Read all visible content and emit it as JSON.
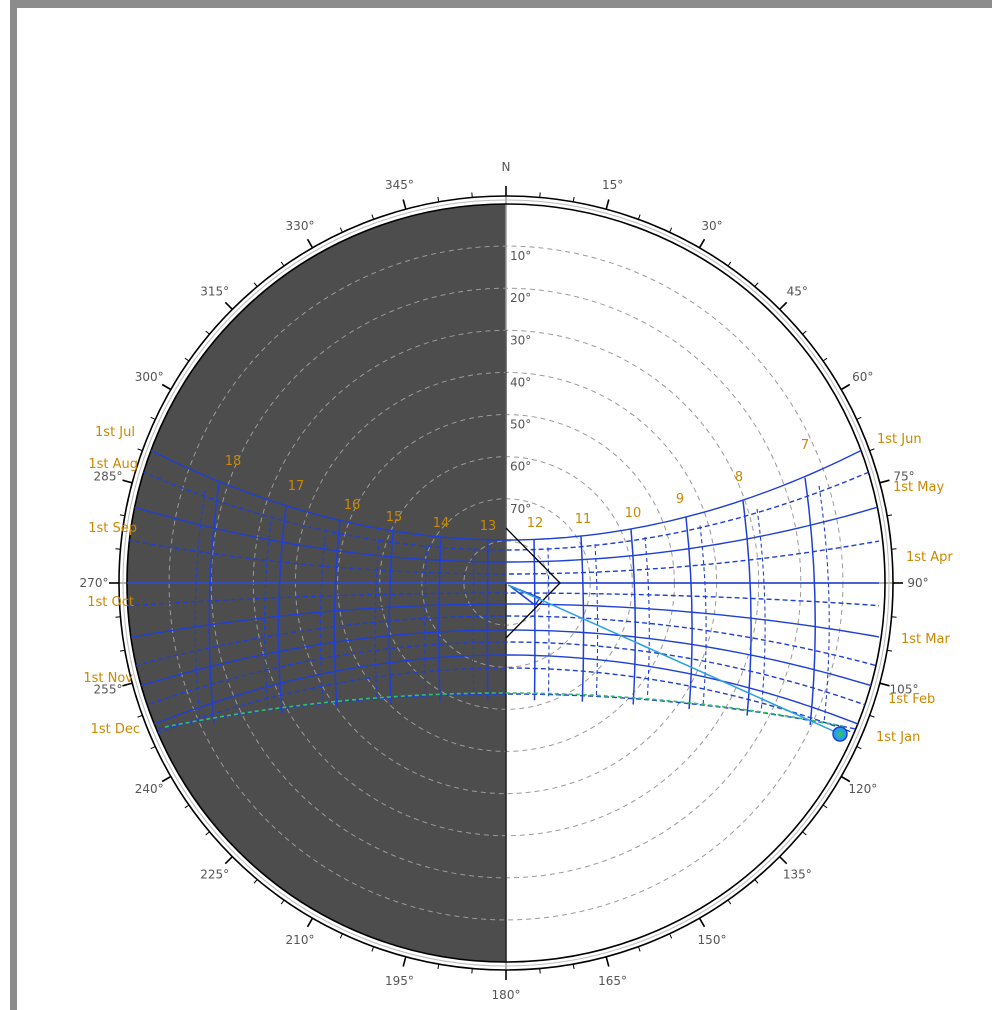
{
  "north_label": "N",
  "azimuth_labels": [
    {
      "deg": 15,
      "text": "15°"
    },
    {
      "deg": 30,
      "text": "30°"
    },
    {
      "deg": 45,
      "text": "45°"
    },
    {
      "deg": 60,
      "text": "60°"
    },
    {
      "deg": 75,
      "text": "75°"
    },
    {
      "deg": 90,
      "text": "90°"
    },
    {
      "deg": 105,
      "text": "105°"
    },
    {
      "deg": 120,
      "text": "120°"
    },
    {
      "deg": 135,
      "text": "135°"
    },
    {
      "deg": 150,
      "text": "150°"
    },
    {
      "deg": 165,
      "text": "165°"
    },
    {
      "deg": 180,
      "text": "180°"
    },
    {
      "deg": 195,
      "text": "195°"
    },
    {
      "deg": 210,
      "text": "210°"
    },
    {
      "deg": 225,
      "text": "225°"
    },
    {
      "deg": 240,
      "text": "240°"
    },
    {
      "deg": 255,
      "text": "255°"
    },
    {
      "deg": 270,
      "text": "270°"
    },
    {
      "deg": 285,
      "text": "285°"
    },
    {
      "deg": 300,
      "text": "300°"
    },
    {
      "deg": 315,
      "text": "315°"
    },
    {
      "deg": 330,
      "text": "330°"
    },
    {
      "deg": 345,
      "text": "345°"
    }
  ],
  "altitude_labels": [
    {
      "alt": 10,
      "text": "10°"
    },
    {
      "alt": 20,
      "text": "20°"
    },
    {
      "alt": 30,
      "text": "30°"
    },
    {
      "alt": 40,
      "text": "40°"
    },
    {
      "alt": 50,
      "text": "50°"
    },
    {
      "alt": 60,
      "text": "60°"
    },
    {
      "alt": 70,
      "text": "70°"
    }
  ],
  "hour_labels": [
    "7",
    "8",
    "9",
    "10",
    "11",
    "12",
    "13",
    "14",
    "15",
    "16",
    "17",
    "18"
  ],
  "month_labels_right": [
    "1st Jun",
    "1st May",
    "1st Apr",
    "1st Mar",
    "1st Feb",
    "1st Jan"
  ],
  "month_labels_left": [
    "1st Jul",
    "1st Aug",
    "1st Sep",
    "1st Oct",
    "1st Nov",
    "1st Dec"
  ],
  "colors": {
    "frame": "#8c8c8c",
    "shade": "#4d4d4d",
    "sunpath": "#1f3fd6",
    "label_orange": "#cc8800",
    "grid": "#9a9a9a",
    "sun_marker": "#2aa0e0"
  }
}
